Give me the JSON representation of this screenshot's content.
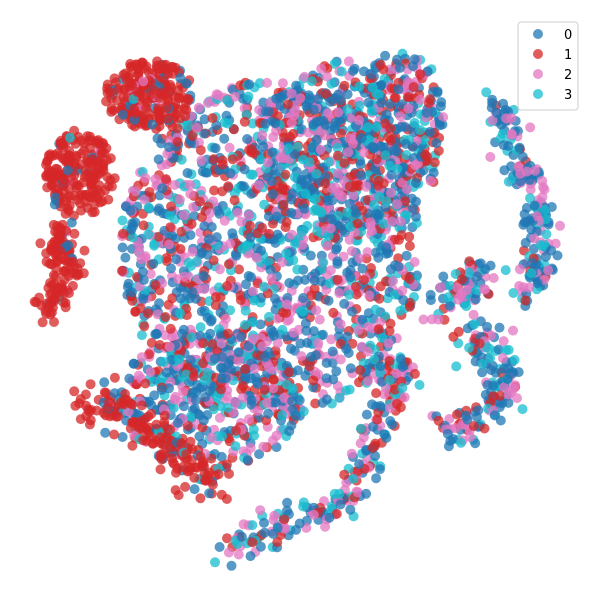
{
  "chart_data": {
    "type": "scatter",
    "title": "",
    "xlabel": "",
    "ylabel": "",
    "axes_visible": false,
    "grid": false,
    "legend_position": "top-right",
    "marker_opacity": 0.75,
    "xlim": [
      -100,
      100
    ],
    "ylim": [
      -100,
      100
    ],
    "series": [
      {
        "name": "0",
        "color": "#1f77b4"
      },
      {
        "name": "1",
        "color": "#d62728"
      },
      {
        "name": "2",
        "color": "#e377c2"
      },
      {
        "name": "3",
        "color": "#17becf"
      }
    ],
    "regions": [
      {
        "id": "main-blob",
        "weights": [
          0.34,
          0.22,
          0.26,
          0.18
        ]
      },
      {
        "id": "red-cluster-top",
        "weights": [
          0.12,
          0.82,
          0.04,
          0.02
        ]
      },
      {
        "id": "red-cluster-left",
        "weights": [
          0.03,
          0.94,
          0.02,
          0.01
        ]
      },
      {
        "id": "right-arc",
        "weights": [
          0.48,
          0.08,
          0.28,
          0.16
        ]
      },
      {
        "id": "bottom-band",
        "weights": [
          0.3,
          0.22,
          0.28,
          0.2
        ]
      },
      {
        "id": "right-lower-arc",
        "weights": [
          0.4,
          0.12,
          0.26,
          0.22
        ]
      }
    ]
  }
}
